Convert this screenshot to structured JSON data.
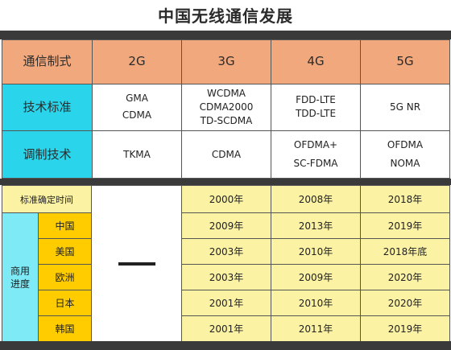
{
  "title": "中国无线通信发展",
  "top_table": {
    "corner": "通信制式",
    "generations": [
      "2G",
      "3G",
      "4G",
      "5G"
    ],
    "rows": [
      {
        "label": "技术标准",
        "cells": [
          [
            "GMA",
            "CDMA"
          ],
          [
            "WCDMA",
            "CDMA2000",
            "TD-SCDMA"
          ],
          [
            "FDD-LTE",
            "TDD-LTE"
          ],
          [
            "5G NR"
          ]
        ]
      },
      {
        "label": "调制技术",
        "cells": [
          [
            "TKMA"
          ],
          [
            "CDMA"
          ],
          [
            "OFDMA+",
            "SC-FDMA"
          ],
          [
            "OFDMA",
            "NOMA"
          ]
        ]
      }
    ]
  },
  "bottom_table": {
    "standard_time_label": "标准确定时间",
    "standard_years": [
      "2000年",
      "2008年",
      "2018年"
    ],
    "group_label": [
      "商用",
      "进度"
    ],
    "countries": [
      {
        "name": "中国",
        "years": [
          "2009年",
          "2013年",
          "2019年"
        ]
      },
      {
        "name": "美国",
        "years": [
          "2003年",
          "2010年",
          "2018年底"
        ]
      },
      {
        "name": "欧洲",
        "years": [
          "2003年",
          "2009年",
          "2020年"
        ]
      },
      {
        "name": "日本",
        "years": [
          "2001年",
          "2010年",
          "2020年"
        ]
      },
      {
        "name": "韩国",
        "years": [
          "2001年",
          "2011年",
          "2019年"
        ]
      }
    ],
    "two_g_symbol": "dash-icon"
  }
}
